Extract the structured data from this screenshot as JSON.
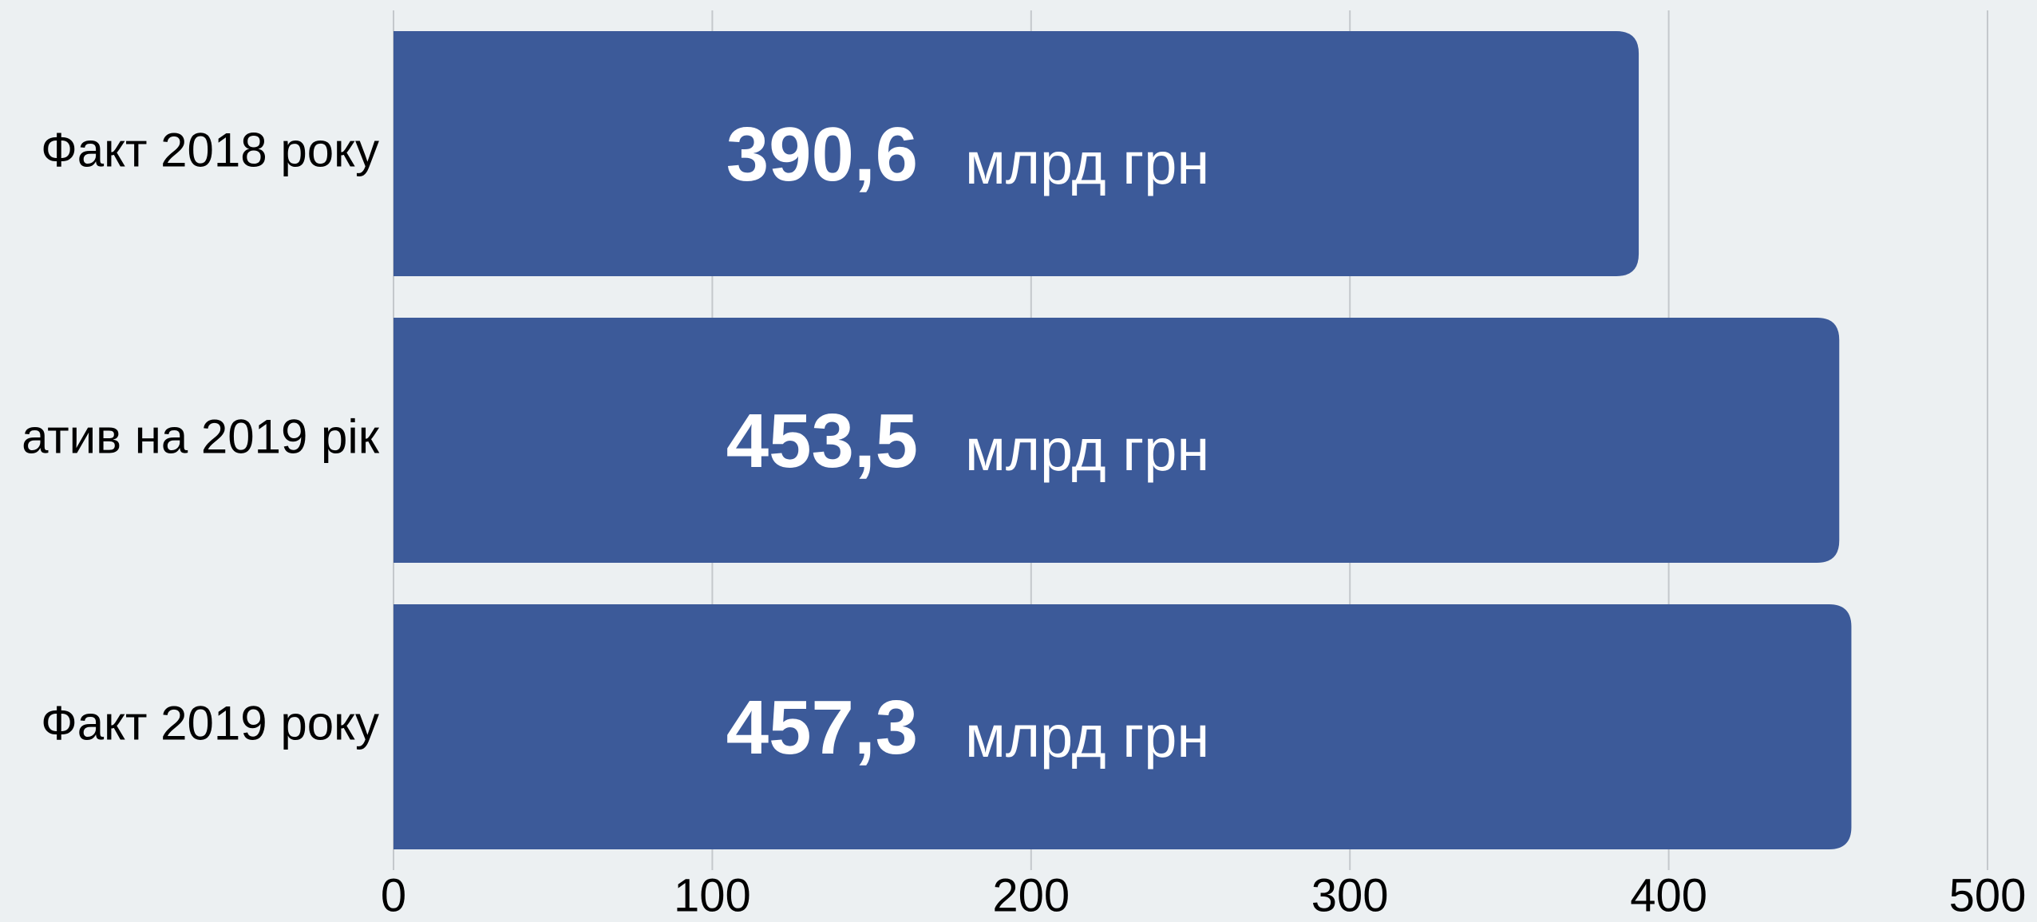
{
  "chart_data": {
    "type": "hbar",
    "categories": [
      "Факт 2018 року",
      "атив на 2019 рік",
      "Факт 2019 року"
    ],
    "values": [
      390.6,
      453.5,
      457.3
    ],
    "value_labels": [
      "390,6",
      "453,5",
      "457,3"
    ],
    "unit_label": "млрд грн",
    "color": "#3c5a99",
    "xlim": [
      0,
      500
    ],
    "xticks": [
      0,
      100,
      200,
      300,
      400,
      500
    ],
    "grid": true
  }
}
